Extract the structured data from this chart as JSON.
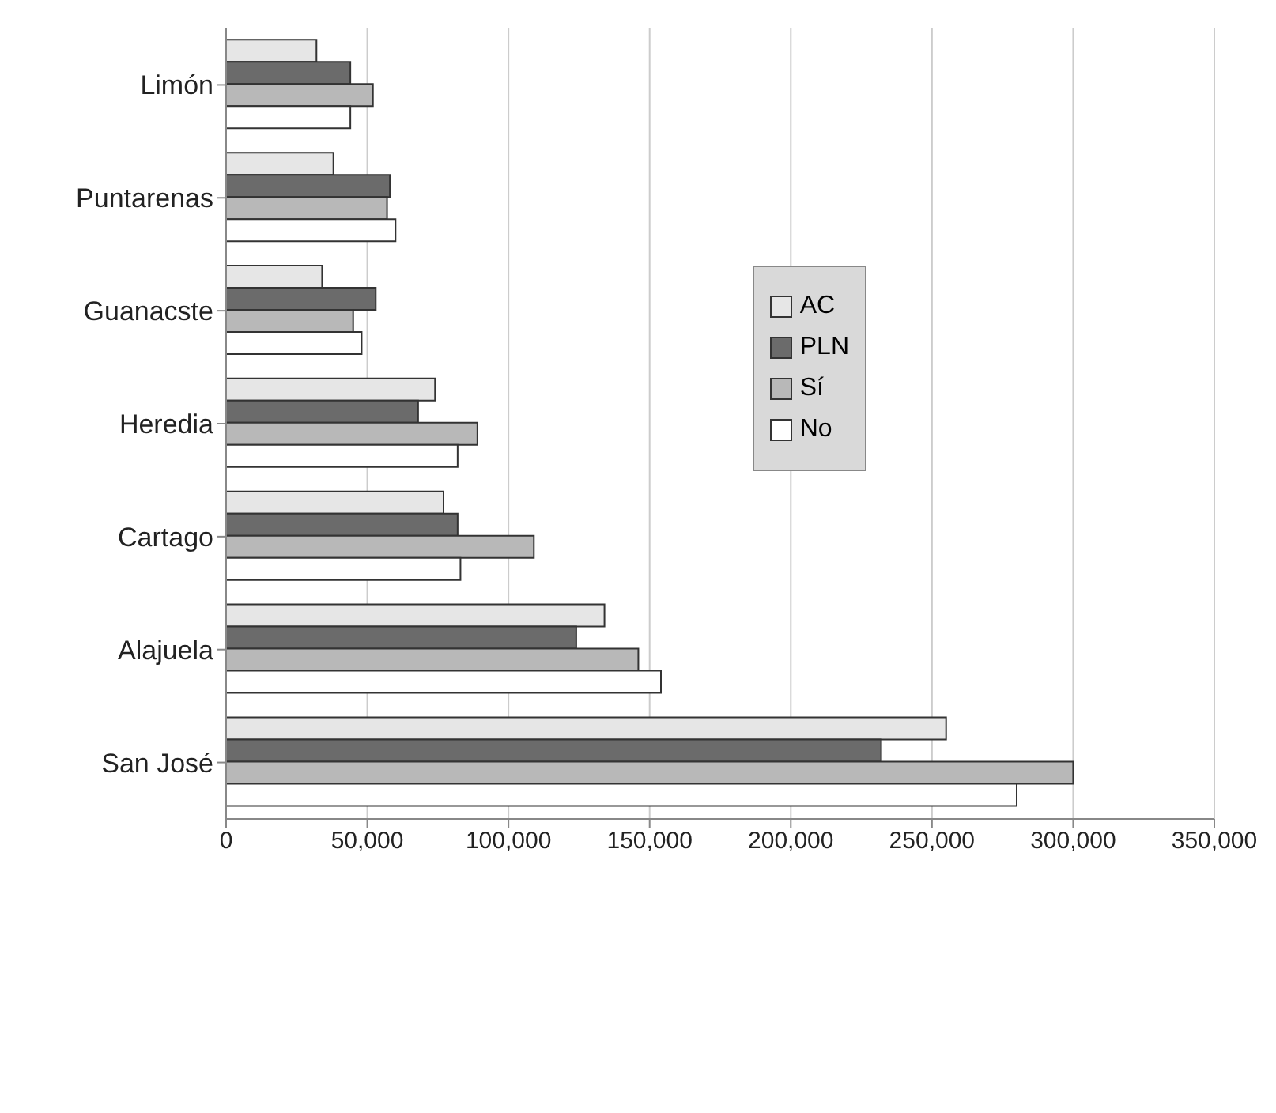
{
  "chart_data": {
    "type": "bar",
    "orientation": "horizontal",
    "categories": [
      "Limón",
      "Puntarenas",
      "Guanacste",
      "Heredia",
      "Cartago",
      "Alajuela",
      "San José"
    ],
    "series": [
      {
        "name": "AC",
        "color": "#e6e6e6",
        "values": [
          32000,
          38000,
          34000,
          74000,
          77000,
          134000,
          255000
        ]
      },
      {
        "name": "PLN",
        "color": "#6b6b6b",
        "values": [
          44000,
          58000,
          53000,
          68000,
          82000,
          124000,
          232000
        ]
      },
      {
        "name": "Sí",
        "color": "#b8b8b8",
        "values": [
          52000,
          57000,
          45000,
          89000,
          109000,
          146000,
          300000
        ]
      },
      {
        "name": "No",
        "color": "#ffffff",
        "values": [
          44000,
          60000,
          48000,
          82000,
          83000,
          154000,
          280000
        ]
      }
    ],
    "xlim": [
      0,
      350000
    ],
    "xticks": [
      0,
      {
        "value": 50000,
        "label": "50,000"
      },
      {
        "value": 100000,
        "label": "100,000"
      },
      {
        "value": 150000,
        "label": "150,000"
      },
      {
        "value": 200000,
        "label": "200,000"
      },
      {
        "value": 250000,
        "label": "250,000"
      },
      {
        "value": 300000,
        "label": "300,000"
      },
      {
        "value": 350000,
        "label": "350,000"
      }
    ],
    "grid": "x",
    "legend": "right"
  }
}
